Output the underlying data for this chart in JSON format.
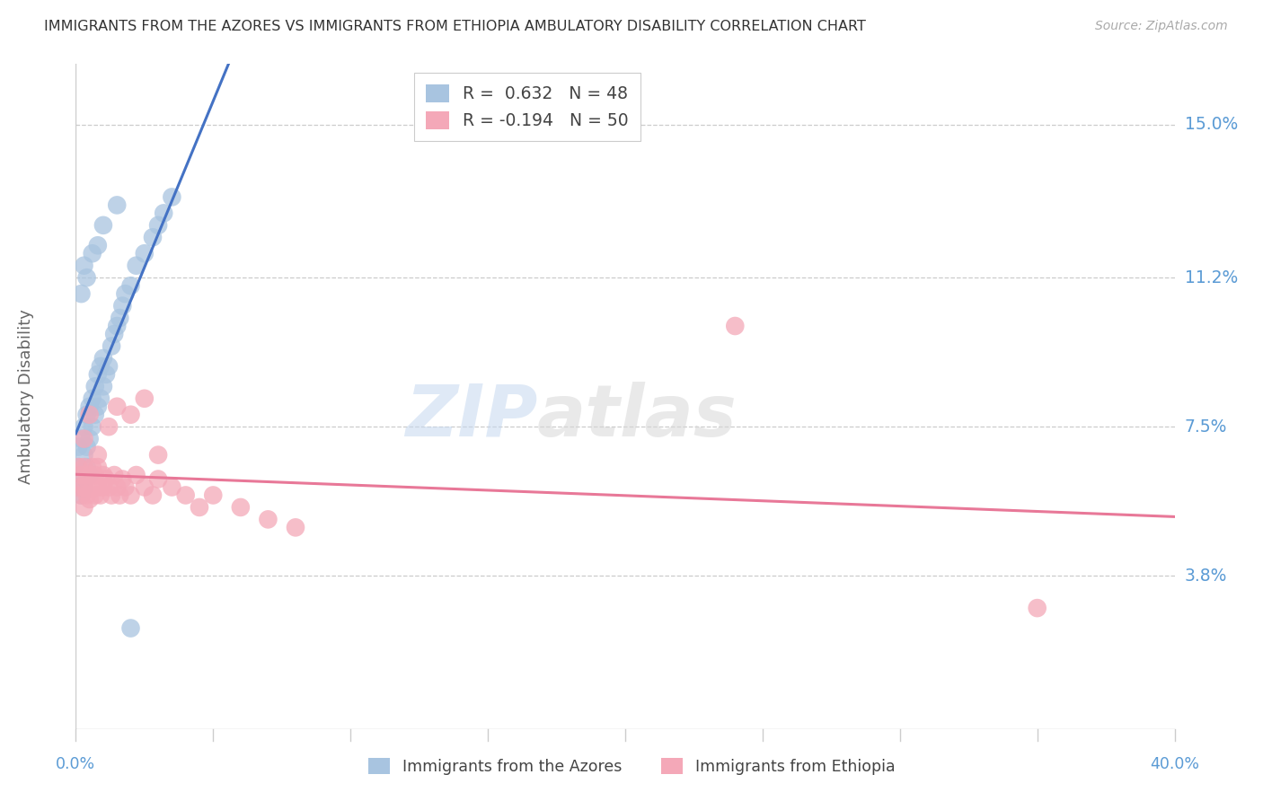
{
  "title": "IMMIGRANTS FROM THE AZORES VS IMMIGRANTS FROM ETHIOPIA AMBULATORY DISABILITY CORRELATION CHART",
  "source": "Source: ZipAtlas.com",
  "ylabel": "Ambulatory Disability",
  "ytick_labels": [
    "3.8%",
    "7.5%",
    "11.2%",
    "15.0%"
  ],
  "ytick_values": [
    0.038,
    0.075,
    0.112,
    0.15
  ],
  "xlim": [
    0.0,
    0.4
  ],
  "ylim": [
    0.0,
    0.165
  ],
  "azores_R": 0.632,
  "azores_N": 48,
  "ethiopia_R": -0.194,
  "ethiopia_N": 50,
  "azores_color": "#a8c4e0",
  "ethiopia_color": "#f4a8b8",
  "azores_line_color": "#4472c4",
  "ethiopia_line_color": "#e87898",
  "azores_x": [
    0.001,
    0.001,
    0.001,
    0.002,
    0.002,
    0.002,
    0.003,
    0.003,
    0.003,
    0.004,
    0.004,
    0.004,
    0.005,
    0.005,
    0.005,
    0.006,
    0.006,
    0.007,
    0.007,
    0.008,
    0.008,
    0.009,
    0.009,
    0.01,
    0.01,
    0.011,
    0.012,
    0.013,
    0.014,
    0.015,
    0.016,
    0.017,
    0.018,
    0.02,
    0.022,
    0.025,
    0.028,
    0.03,
    0.032,
    0.035,
    0.002,
    0.003,
    0.004,
    0.006,
    0.008,
    0.01,
    0.015,
    0.02
  ],
  "azores_y": [
    0.06,
    0.065,
    0.07,
    0.058,
    0.063,
    0.072,
    0.06,
    0.068,
    0.075,
    0.065,
    0.07,
    0.078,
    0.063,
    0.072,
    0.08,
    0.075,
    0.082,
    0.078,
    0.085,
    0.08,
    0.088,
    0.082,
    0.09,
    0.085,
    0.092,
    0.088,
    0.09,
    0.095,
    0.098,
    0.1,
    0.102,
    0.105,
    0.108,
    0.11,
    0.115,
    0.118,
    0.122,
    0.125,
    0.128,
    0.132,
    0.108,
    0.115,
    0.112,
    0.118,
    0.12,
    0.125,
    0.13,
    0.025
  ],
  "ethiopia_x": [
    0.001,
    0.001,
    0.002,
    0.002,
    0.003,
    0.003,
    0.003,
    0.004,
    0.004,
    0.005,
    0.005,
    0.006,
    0.006,
    0.007,
    0.007,
    0.008,
    0.008,
    0.009,
    0.01,
    0.01,
    0.011,
    0.012,
    0.013,
    0.014,
    0.015,
    0.016,
    0.017,
    0.018,
    0.02,
    0.022,
    0.025,
    0.028,
    0.03,
    0.035,
    0.04,
    0.045,
    0.05,
    0.06,
    0.07,
    0.08,
    0.003,
    0.005,
    0.008,
    0.012,
    0.015,
    0.02,
    0.025,
    0.03,
    0.24,
    0.35
  ],
  "ethiopia_y": [
    0.06,
    0.065,
    0.058,
    0.063,
    0.055,
    0.06,
    0.065,
    0.058,
    0.062,
    0.057,
    0.063,
    0.06,
    0.065,
    0.058,
    0.063,
    0.06,
    0.065,
    0.058,
    0.06,
    0.063,
    0.062,
    0.06,
    0.058,
    0.063,
    0.06,
    0.058,
    0.062,
    0.06,
    0.058,
    0.063,
    0.06,
    0.058,
    0.062,
    0.06,
    0.058,
    0.055,
    0.058,
    0.055,
    0.052,
    0.05,
    0.072,
    0.078,
    0.068,
    0.075,
    0.08,
    0.078,
    0.082,
    0.068,
    0.1,
    0.03
  ],
  "watermark_zip": "ZIP",
  "watermark_atlas": "atlas",
  "background_color": "#ffffff",
  "title_color": "#333333",
  "tick_label_color": "#5b9bd5",
  "ylabel_color": "#666666",
  "source_color": "#aaaaaa",
  "grid_color": "#cccccc",
  "spine_color": "#cccccc"
}
